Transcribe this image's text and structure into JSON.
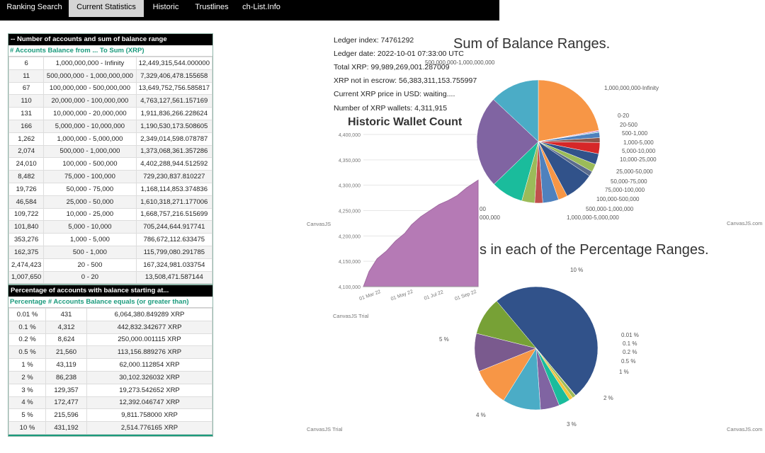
{
  "nav": {
    "tabs": [
      {
        "label": "Ranking Search"
      },
      {
        "label": "Current Statistics"
      },
      {
        "label": "Historic"
      },
      {
        "label": "Trustlines"
      },
      {
        "label": "ch-List.Info"
      }
    ]
  },
  "table1": {
    "title": "-- Number of accounts and sum of balance range",
    "header": "# Accounts Balance from ... To Sum (XRP)",
    "rows": [
      [
        "6",
        "1,000,000,000 - Infinity",
        "12,449,315,544.000000"
      ],
      [
        "11",
        "500,000,000 - 1,000,000,000",
        "7,329,406,478.155658"
      ],
      [
        "67",
        "100,000,000 - 500,000,000",
        "13,649,752,756.585817"
      ],
      [
        "110",
        "20,000,000 - 100,000,000",
        "4,763,127,561.157169"
      ],
      [
        "131",
        "10,000,000 - 20,000,000",
        "1,911,836,266.228624"
      ],
      [
        "166",
        "5,000,000 - 10,000,000",
        "1,190,530,173.508605"
      ],
      [
        "1,262",
        "1,000,000 - 5,000,000",
        "2,349,014,598.078787"
      ],
      [
        "2,074",
        "500,000 - 1,000,000",
        "1,373,068,361.357286"
      ],
      [
        "24,010",
        "100,000 - 500,000",
        "4,402,288,944.512592"
      ],
      [
        "8,482",
        "75,000 - 100,000",
        "729,230,837.810227"
      ],
      [
        "19,726",
        "50,000 - 75,000",
        "1,168,114,853.374836"
      ],
      [
        "46,584",
        "25,000 - 50,000",
        "1,610,318,271.177006"
      ],
      [
        "109,722",
        "10,000 - 25,000",
        "1,668,757,216.515699"
      ],
      [
        "101,840",
        "5,000 - 10,000",
        "705,244,644.917741"
      ],
      [
        "353,276",
        "1,000 - 5,000",
        "786,672,112.633475"
      ],
      [
        "162,375",
        "500 - 1,000",
        "115,799,080.291785"
      ],
      [
        "2,474,423",
        "20 - 500",
        "167,324,981.033754"
      ],
      [
        "1,007,650",
        "0 - 20",
        "13,508,471.587144"
      ]
    ]
  },
  "table2": {
    "title": "Percentage of accounts with balance starting at...",
    "header": "Percentage # Accounts Balance equals (or greater than)",
    "rows": [
      [
        "0.01 %",
        "431",
        "6,064,380.849289 XRP"
      ],
      [
        "0.1 %",
        "4,312",
        "442,832.342677 XRP"
      ],
      [
        "0.2 %",
        "8,624",
        "250,000.001115 XRP"
      ],
      [
        "0.5 %",
        "21,560",
        "113,156.889276 XRP"
      ],
      [
        "1 %",
        "43,119",
        "62,000.112854 XRP"
      ],
      [
        "2 %",
        "86,238",
        "30,102.326032 XRP"
      ],
      [
        "3 %",
        "129,357",
        "19,273.542652 XRP"
      ],
      [
        "4 %",
        "172,477",
        "12,392.046747 XRP"
      ],
      [
        "5 %",
        "215,596",
        "9,811.758000 XRP"
      ],
      [
        "10 %",
        "431,192",
        "2,514.776165 XRP"
      ]
    ]
  },
  "ledger": {
    "index": "Ledger index: 74761292",
    "date": "Ledger date: 2022-10-01 07:33:00 UTC",
    "total": "Total XRP: 99,989,269,001.287009",
    "not_escrow": "XRP not in escrow: 56,383,311,153.755997",
    "price": "Current XRP price in USD: waiting....",
    "wallets": "Number of XRP wallets: 4,311,915"
  },
  "chart_data": [
    {
      "type": "pie",
      "title": "Sum of Balance Ranges.",
      "labels": [
        "1,000,000,000-Infinity",
        "0-20",
        "20-500",
        "500-1,000",
        "1,000-5,000",
        "5,000-10,000",
        "10,000-25,000",
        "25,000-50,000",
        "50,000-75,000",
        "75,000-100,000",
        "100,000-500,000",
        "500,000-1,000,000",
        "1,000,000-5,000,000",
        "500,000,000-1,000,000,000"
      ],
      "visible_labels_partial": [
        "00",
        "000,000"
      ],
      "colors": {
        "c1": "#f79646",
        "c2": "#4bacc6",
        "c3": "#8064a2",
        "c4": "#1abc9c",
        "c5": "#31528a",
        "c6": "#9bbb59",
        "c7": "#c0504d",
        "c8": "#4f81bd"
      }
    },
    {
      "type": "area",
      "title": "Historic Wallet Count",
      "y_ticks": [
        "4,400,000",
        "4,350,000",
        "4,300,000",
        "4,250,000",
        "4,200,000",
        "4,150,000",
        "4,100,000"
      ],
      "x_ticks": [
        "01 Mar 22",
        "01 May 22",
        "01 Jul 22",
        "01 Sep 22"
      ],
      "ylim": [
        4100000,
        4400000
      ],
      "color": "#b57ab5",
      "watermark": "CanvasJS Trial"
    },
    {
      "type": "pie",
      "title": "s in each of the Percentage Ranges.",
      "labels": [
        "10 %",
        "0.01 %",
        "0.1 %",
        "0.2 %",
        "0.5 %",
        "1 %",
        "2 %",
        "3 %",
        "4 %",
        "5 %"
      ],
      "colors": {
        "p10": "#31528a",
        "p5": "#77a136",
        "p4": "#7a5a8e",
        "p3": "#f79646",
        "p2": "#4bacc6",
        "p1": "#8064a2"
      }
    }
  ],
  "watermarks": {
    "canvasjs_com": "CanvasJS.com",
    "canvasjs_trial": "CanvasJS Trial",
    "canvasjs_short": "CanvasJS"
  }
}
